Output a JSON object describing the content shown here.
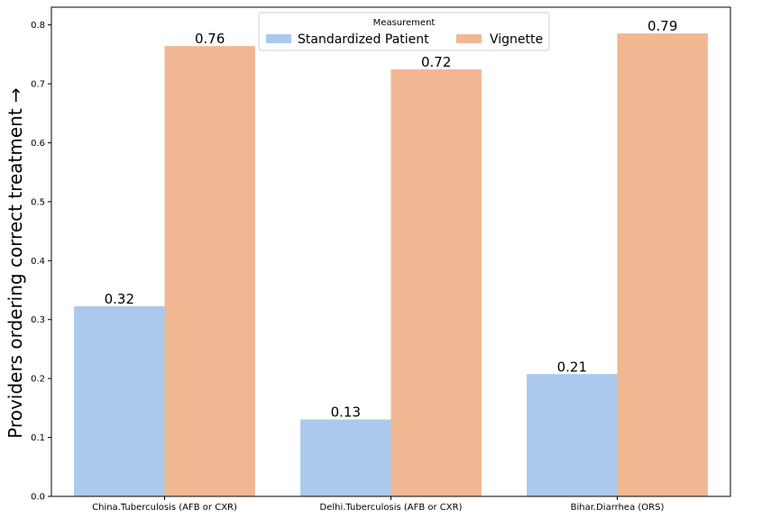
{
  "chart_data": {
    "type": "bar",
    "categories": [
      "China.Tuberculosis (AFB or CXR)",
      "Delhi.Tuberculosis (AFB or CXR)",
      "Bihar.Diarrhea (ORS)"
    ],
    "series": [
      {
        "name": "Standardized Patient",
        "values": [
          0.3225,
          0.1305,
          0.2075
        ],
        "labels": [
          "0.32",
          "0.13",
          "0.21"
        ],
        "color": "#abc9ec"
      },
      {
        "name": "Vignette",
        "values": [
          0.764,
          0.7245,
          0.7855
        ],
        "labels": [
          "0.76",
          "0.72",
          "0.79"
        ],
        "color": "#f0b792"
      }
    ],
    "title": "",
    "xlabel": "",
    "ylabel": "Providers ordering correct treatment →",
    "ylim": [
      0,
      0.83
    ],
    "yticks": [
      "0.0",
      "0.1",
      "0.2",
      "0.3",
      "0.4",
      "0.5",
      "0.6",
      "0.7",
      "0.8"
    ],
    "grid": false,
    "legend": {
      "title": "Measurement",
      "placement": "top-center"
    }
  }
}
